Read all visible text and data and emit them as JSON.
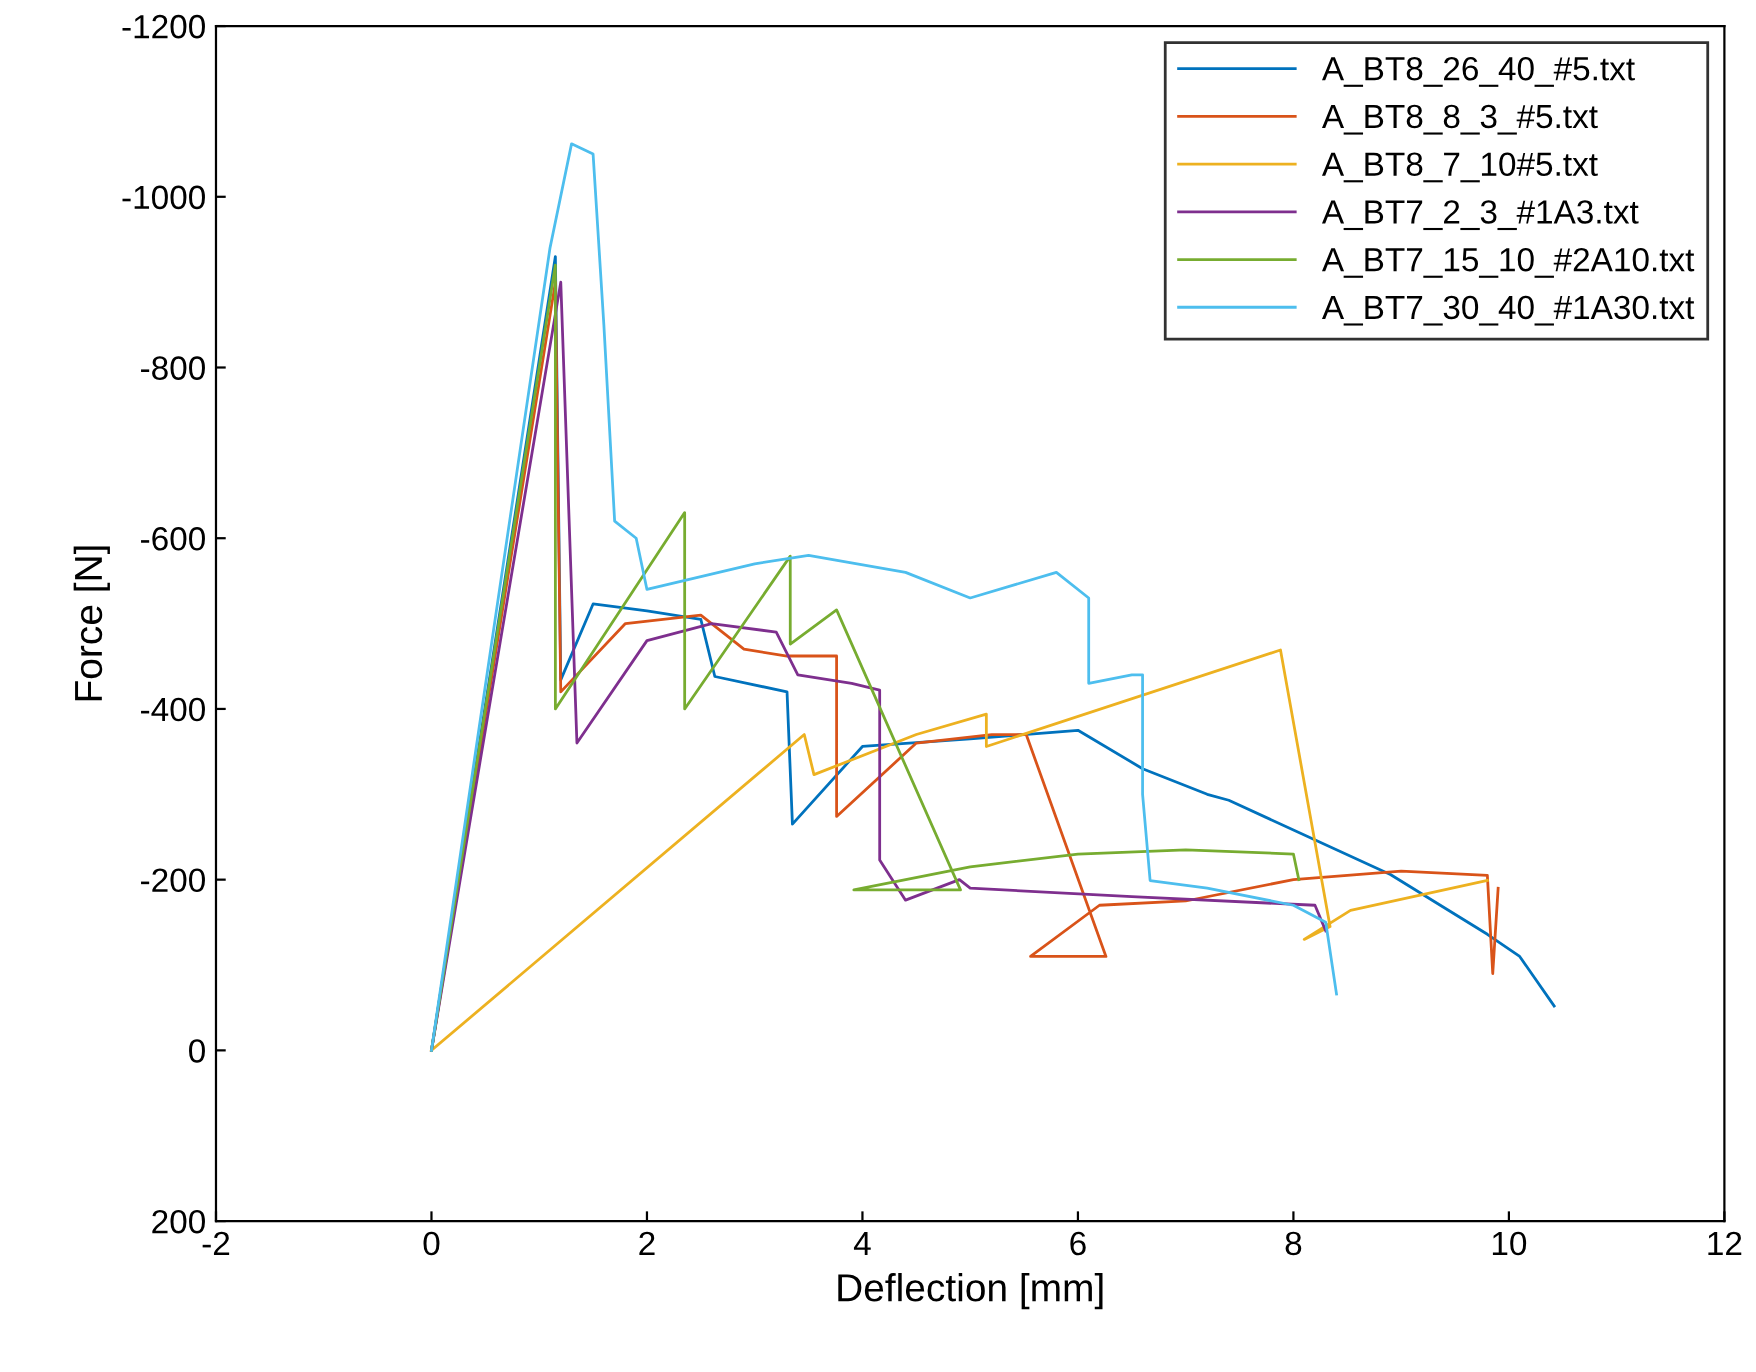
{
  "chart_data": {
    "type": "line",
    "xlabel": "Deflection [mm]",
    "ylabel": "Force [N]",
    "xlim": [
      -2,
      12
    ],
    "xticks": [
      -2,
      0,
      2,
      4,
      6,
      8,
      10,
      12
    ],
    "ylim": [
      200,
      -1200
    ],
    "yticks": [
      200,
      0,
      -200,
      -400,
      -600,
      -800,
      -1000,
      -1200
    ],
    "grid": false,
    "legend": "top right",
    "line_style": "solid",
    "marker": "none",
    "series": [
      {
        "name": "A_BT8_26_40_#5.txt",
        "color": "#0072bd",
        "x": [
          0,
          1.15,
          1.2,
          1.5,
          2.0,
          2.5,
          2.63,
          3.3,
          3.35,
          4.0,
          5.0,
          5.5,
          6.0,
          6.6,
          7.2,
          7.4,
          8.9,
          9.8,
          10.1,
          10.42
        ],
        "values": [
          0,
          -930,
          -434,
          -523,
          -515,
          -505,
          -438,
          -420,
          -265,
          -356,
          -365,
          -370,
          -375,
          -330,
          -300,
          -293,
          -206,
          -136,
          -110,
          -52
        ]
      },
      {
        "name": "A_BT8_8_3_#5.txt",
        "color": "#d95319",
        "x": [
          0,
          1.15,
          1.2,
          1.8,
          2.5,
          2.9,
          3.3,
          3.76,
          3.76,
          4.5,
          5.2,
          5.52,
          6.26,
          5.56,
          6.2,
          7.0,
          8.0,
          9.0,
          9.8,
          9.85,
          9.9
        ],
        "values": [
          0,
          -900,
          -420,
          -500,
          -510,
          -470,
          -462,
          -462,
          -274,
          -360,
          -370,
          -370,
          -110,
          -110,
          -170,
          -175,
          -200,
          -210,
          -205,
          -90,
          -190
        ]
      },
      {
        "name": "A_BT8_7_10#5.txt",
        "color": "#edb120",
        "x": [
          0,
          3.46,
          3.55,
          4.5,
          5.15,
          5.15,
          7.88,
          8.34,
          8.1,
          8.53,
          9.8
        ],
        "values": [
          0,
          -370,
          -323,
          -370,
          -394,
          -356,
          -469,
          -145,
          -130,
          -164,
          -199
        ]
      },
      {
        "name": "A_BT7_2_3_#1A3.txt",
        "color": "#7e2f8e",
        "x": [
          0,
          1.2,
          1.35,
          2.0,
          2.6,
          3.2,
          3.4,
          3.9,
          4.16,
          4.16,
          4.4,
          4.9,
          5.0,
          6.5,
          8.2,
          8.3
        ],
        "values": [
          0,
          -900,
          -360,
          -480,
          -500,
          -490,
          -440,
          -430,
          -422,
          -223,
          -176,
          -200,
          -190,
          -180,
          -170,
          -140
        ]
      },
      {
        "name": "A_BT7_15_10_#2A10.txt",
        "color": "#77ac30",
        "x": [
          0,
          1.15,
          1.15,
          2.35,
          2.35,
          3.33,
          3.33,
          3.76,
          4.91,
          3.92,
          5.0,
          6.0,
          7.0,
          8.0,
          8.05
        ],
        "values": [
          0,
          -920,
          -400,
          -630,
          -400,
          -579,
          -476,
          -516,
          -188,
          -188,
          -215,
          -230,
          -235,
          -230,
          -200
        ]
      },
      {
        "name": "A_BT7_30_40_#1A30.txt",
        "color": "#4dbeee",
        "x": [
          0,
          1.1,
          1.3,
          1.5,
          1.6,
          1.7,
          1.9,
          2.0,
          3.0,
          3.5,
          4.4,
          5.0,
          5.8,
          6.1,
          6.1,
          6.5,
          6.6,
          6.6,
          6.67,
          7.2,
          8.0,
          8.3,
          8.4
        ],
        "values": [
          0,
          -940,
          -1062,
          -1050,
          -850,
          -620,
          -600,
          -540,
          -570,
          -580,
          -560,
          -530,
          -560,
          -530,
          -430,
          -440,
          -440,
          -300,
          -199,
          -190,
          -170,
          -150,
          -66
        ]
      }
    ]
  }
}
